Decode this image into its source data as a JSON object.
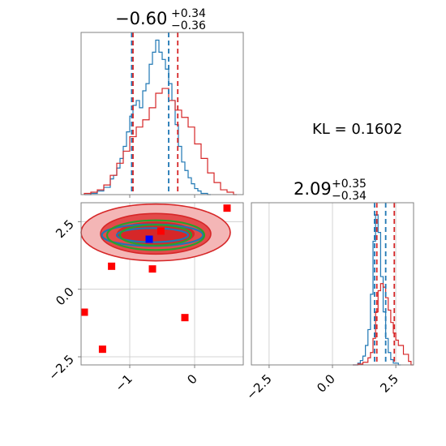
{
  "chart_data": [
    {
      "type": "histogram",
      "panel": "top-left",
      "title": {
        "median": "−0.60",
        "plus": "+0.34",
        "minus": "−0.36"
      },
      "xlim": [
        -1.75,
        0.75
      ],
      "series": [
        {
          "name": "",
          "color": "#1f77b4",
          "x": [
            -1.7,
            -1.6,
            -1.5,
            -1.4,
            -1.3,
            -1.25,
            -1.2,
            -1.15,
            -1.1,
            -1.05,
            -1.0,
            -0.95,
            -0.9,
            -0.85,
            -0.8,
            -0.75,
            -0.7,
            -0.65,
            -0.6,
            -0.55,
            -0.5,
            -0.45,
            -0.4,
            -0.35,
            -0.3,
            -0.25,
            -0.2,
            -0.15,
            -0.1,
            -0.05,
            0.0,
            0.05,
            0.1,
            0.2
          ],
          "y": [
            0,
            1,
            3,
            6,
            13,
            16,
            22,
            30,
            40,
            52,
            65,
            74,
            78,
            72,
            86,
            92,
            108,
            118,
            128,
            118,
            112,
            104,
            92,
            78,
            58,
            40,
            27,
            20,
            14,
            9,
            5,
            3,
            1,
            0
          ]
        },
        {
          "name": "",
          "color": "#d62728",
          "x": [
            -1.7,
            -1.6,
            -1.5,
            -1.4,
            -1.3,
            -1.2,
            -1.1,
            -1.0,
            -0.9,
            -0.8,
            -0.7,
            -0.6,
            -0.5,
            -0.4,
            -0.3,
            -0.2,
            -0.1,
            0.0,
            0.1,
            0.2,
            0.3,
            0.4,
            0.5,
            0.6
          ],
          "y": [
            1,
            2,
            4,
            8,
            16,
            26,
            36,
            48,
            56,
            62,
            72,
            84,
            88,
            78,
            70,
            64,
            56,
            42,
            30,
            18,
            10,
            4,
            2,
            0
          ]
        }
      ],
      "vlines": [
        {
          "x": -0.97,
          "color": "#1f77b4"
        },
        {
          "x": -0.4,
          "color": "#1f77b4"
        },
        {
          "x": -0.95,
          "color": "#d62728"
        },
        {
          "x": -0.26,
          "color": "#d62728"
        }
      ]
    },
    {
      "type": "scatter-contour",
      "panel": "bottom-left",
      "xlim": [
        -1.75,
        0.75
      ],
      "ylim": [
        -2.8,
        3.2
      ],
      "xticks": [
        -1,
        0
      ],
      "xticklabels": [
        "−1",
        "0"
      ],
      "yticks": [
        -2.5,
        0.0,
        2.5
      ],
      "yticklabels": [
        "−2.5",
        "0.0",
        "2.5"
      ],
      "grid": true,
      "red_points": [
        {
          "x": 0.5,
          "y": 3.0
        },
        {
          "x": -1.28,
          "y": 0.85
        },
        {
          "x": -0.65,
          "y": 0.75
        },
        {
          "x": -1.7,
          "y": -0.85
        },
        {
          "x": -0.15,
          "y": -1.05
        },
        {
          "x": -1.42,
          "y": -2.22
        },
        {
          "x": -0.52,
          "y": 2.15
        }
      ],
      "blue_point": {
        "x": -0.7,
        "y": 1.85
      },
      "contours": [
        {
          "color": "#d62728",
          "cx": -0.6,
          "cy": 2.1,
          "rx": 1.15,
          "ry": 1.05
        },
        {
          "color": "#d62728",
          "cx": -0.6,
          "cy": 2.05,
          "rx": 0.85,
          "ry": 0.75
        },
        {
          "color": "#1f77b4",
          "cx": -0.65,
          "cy": 2.0,
          "rx": 0.78,
          "ry": 0.4
        },
        {
          "color": "#1f77b4",
          "cx": -0.65,
          "cy": 2.0,
          "rx": 0.55,
          "ry": 0.26
        },
        {
          "color": "#2ca02c",
          "cx": -0.6,
          "cy": 2.0,
          "rx": 0.75,
          "ry": 0.55
        },
        {
          "color": "#2ca02c",
          "cx": -0.6,
          "cy": 2.0,
          "rx": 0.55,
          "ry": 0.38
        }
      ]
    },
    {
      "type": "histogram",
      "panel": "bottom-right",
      "title": {
        "median": "2.09",
        "plus": "+0.35",
        "minus": "−0.34"
      },
      "xlim": [
        -3.2,
        3.2
      ],
      "xticks": [
        -2.5,
        0.0,
        2.5
      ],
      "xticklabels": [
        "−2.5",
        "0.0",
        "2.5"
      ],
      "grid": true,
      "series": [
        {
          "name": "",
          "color": "#1f77b4",
          "x": [
            0.8,
            1.0,
            1.1,
            1.2,
            1.3,
            1.4,
            1.5,
            1.6,
            1.7,
            1.8,
            1.9,
            2.0,
            2.1,
            2.2,
            2.3,
            2.4,
            2.6
          ],
          "y": [
            0,
            2,
            5,
            10,
            22,
            40,
            80,
            140,
            170,
            150,
            100,
            60,
            30,
            14,
            6,
            2,
            0
          ]
        },
        {
          "name": "",
          "color": "#d62728",
          "x": [
            0.8,
            1.0,
            1.2,
            1.4,
            1.5,
            1.6,
            1.7,
            1.8,
            1.9,
            2.0,
            2.1,
            2.2,
            2.3,
            2.4,
            2.5,
            2.6,
            2.8,
            3.0,
            3.1
          ],
          "y": [
            0,
            1,
            3,
            8,
            14,
            30,
            60,
            84,
            92,
            88,
            76,
            62,
            48,
            36,
            28,
            22,
            12,
            4,
            0
          ]
        }
      ],
      "vlines": [
        {
          "x": 1.66,
          "color": "#1f77b4"
        },
        {
          "x": 2.1,
          "color": "#1f77b4"
        },
        {
          "x": 1.75,
          "color": "#d62728"
        },
        {
          "x": 2.44,
          "color": "#d62728"
        }
      ]
    }
  ],
  "annotation": {
    "kl": "KL = 0.1602"
  }
}
